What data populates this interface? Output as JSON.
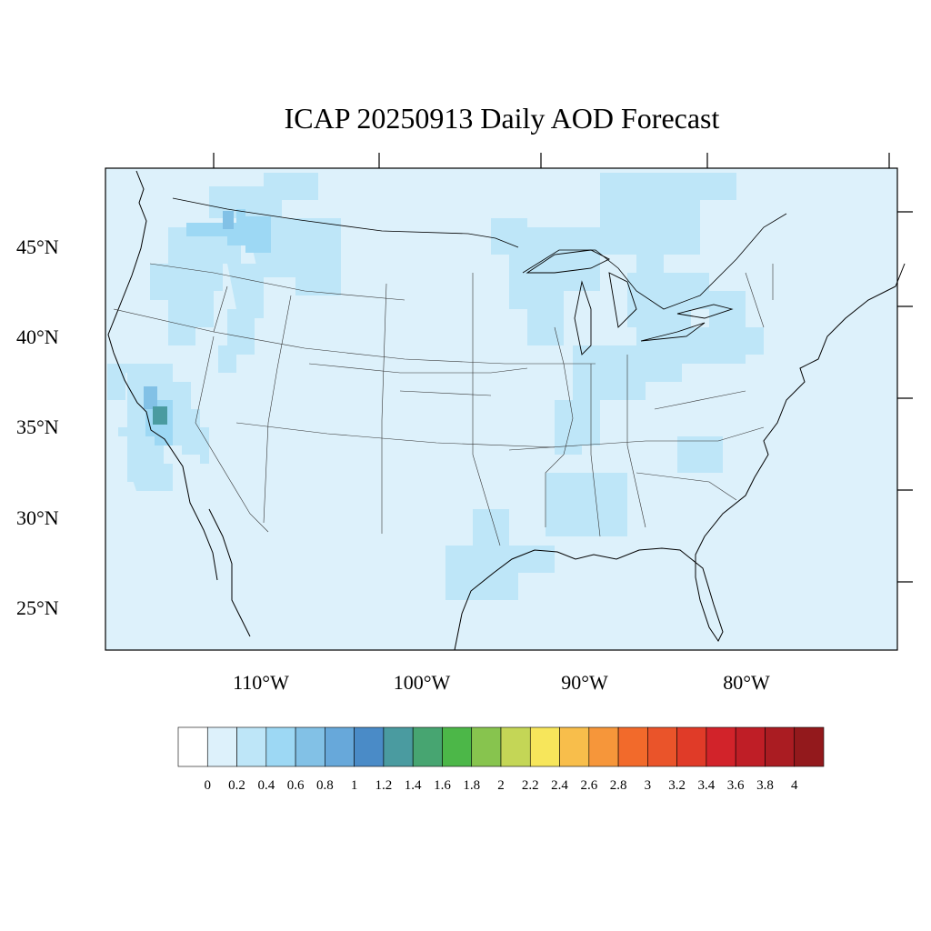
{
  "title": "ICAP 20250913 Daily AOD Forecast",
  "lat_labels": [
    "45°N",
    "40°N",
    "35°N",
    "30°N",
    "25°N"
  ],
  "lon_labels": [
    "110°W",
    "100°W",
    "90°W",
    "80°W"
  ],
  "colorbar": {
    "labels": [
      "0",
      "0.2",
      "0.4",
      "0.6",
      "0.8",
      "1",
      "1.2",
      "1.4",
      "1.6",
      "1.8",
      "2",
      "2.2",
      "2.4",
      "2.6",
      "2.8",
      "3",
      "3.2",
      "3.4",
      "3.6",
      "3.8",
      "4"
    ],
    "colors": [
      "#ffffff",
      "#ddf1fb",
      "#bee6f8",
      "#9dd8f4",
      "#82c1e6",
      "#67a8da",
      "#4a8bc7",
      "#4a9ba0",
      "#47a571",
      "#4cb748",
      "#87c44e",
      "#c4d656",
      "#f7e65b",
      "#f8be4b",
      "#f6963a",
      "#f26a2b",
      "#ea542a",
      "#e03b28",
      "#d2232a",
      "#bf1e26",
      "#aa1c22",
      "#93191c"
    ]
  }
}
